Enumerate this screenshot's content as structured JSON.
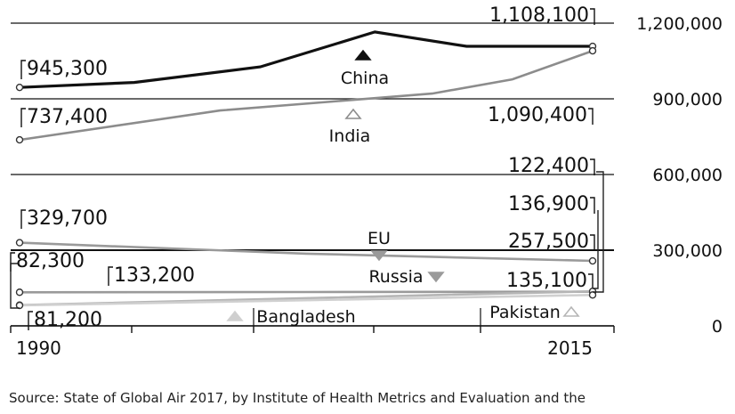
{
  "chart_data": {
    "type": "line",
    "x": [
      1990,
      2015
    ],
    "x_labels": [
      "1990",
      "2015"
    ],
    "ylim": [
      0,
      1200000
    ],
    "y_ticks": [
      0,
      300000,
      600000,
      900000,
      1200000
    ],
    "y_tick_labels": [
      "0",
      "300,000",
      "600,000",
      "900,000",
      "1,200,000"
    ],
    "grid": true,
    "series": [
      {
        "name": "China",
        "values": [
          945300,
          1108100
        ],
        "start_label": "945,300",
        "end_label": "1,108,100",
        "color": "#111111",
        "marker": "up"
      },
      {
        "name": "India",
        "values": [
          737400,
          1090400
        ],
        "start_label": "737,400",
        "end_label": "1,090,400",
        "color": "#8c8c8c",
        "marker": "up-outline"
      },
      {
        "name": "EU",
        "values": [
          329700,
          257500
        ],
        "start_label": "329,700",
        "end_label": "257,500",
        "color": "#9a9a9a",
        "marker": "down"
      },
      {
        "name": "Russia",
        "values": [
          133200,
          135100
        ],
        "start_label": "133,200",
        "end_label": "135,100",
        "color": "#9a9a9a",
        "marker": "down"
      },
      {
        "name": "Pakistan",
        "values": [
          82300,
          136900
        ],
        "start_label": "82,300",
        "end_label": "136,900",
        "color": "#b5b5b5",
        "marker": "up-outline"
      },
      {
        "name": "Bangladesh",
        "values": [
          81200,
          122400
        ],
        "start_label": "81,200",
        "end_label": "122,400",
        "color": "#d0d0d0",
        "marker": "up"
      }
    ]
  },
  "source_text": "Source: State of Global Air 2017, by Institute of Health Metrics and Evaluation and the"
}
